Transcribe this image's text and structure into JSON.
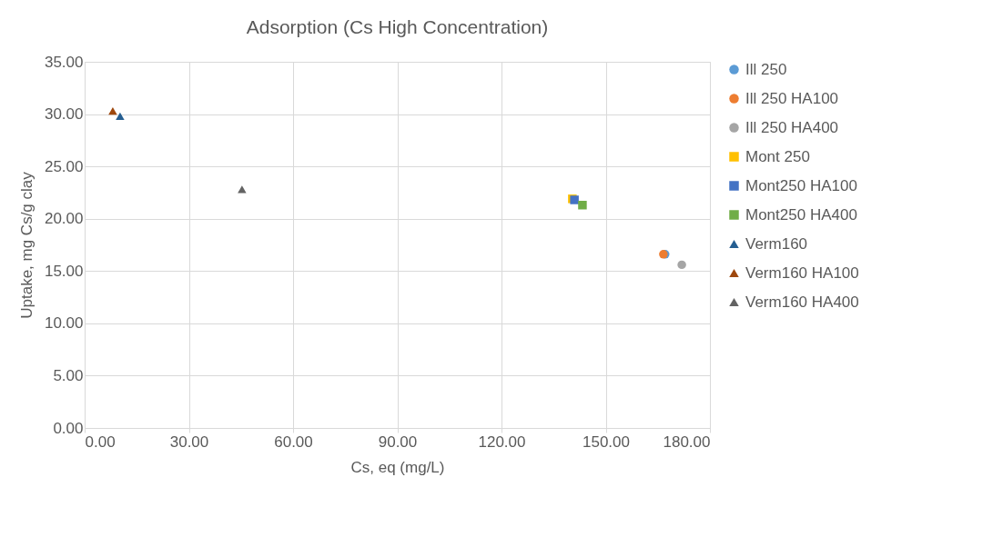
{
  "chart_data": {
    "type": "scatter",
    "title": "Adsorption (Cs High Concentration)",
    "xlabel": "Cs, eq (mg/L)",
    "ylabel": "Uptake, mg Cs/g clay",
    "xlim": [
      0,
      180
    ],
    "ylim": [
      0,
      35
    ],
    "xticks": [
      {
        "value": 0,
        "label": "0.00"
      },
      {
        "value": 30,
        "label": "30.00"
      },
      {
        "value": 60,
        "label": "60.00"
      },
      {
        "value": 90,
        "label": "90.00"
      },
      {
        "value": 120,
        "label": "120.00"
      },
      {
        "value": 150,
        "label": "150.00"
      },
      {
        "value": 180,
        "label": "180.00"
      }
    ],
    "yticks": [
      {
        "value": 0,
        "label": "0.00"
      },
      {
        "value": 5,
        "label": "5.00"
      },
      {
        "value": 10,
        "label": "10.00"
      },
      {
        "value": 15,
        "label": "15.00"
      },
      {
        "value": 20,
        "label": "20.00"
      },
      {
        "value": 25,
        "label": "25.00"
      },
      {
        "value": 30,
        "label": "30.00"
      },
      {
        "value": 35,
        "label": "35.00"
      }
    ],
    "grid": true,
    "legend": "right",
    "series": [
      {
        "name": "Ill 250",
        "color": "#5b9bd5",
        "marker": "circle",
        "x": [
          167.1
        ],
        "values": [
          16.6
        ]
      },
      {
        "name": "Ill 250 HA100",
        "color": "#ed7d31",
        "marker": "circle",
        "x": [
          166.6
        ],
        "values": [
          16.6
        ]
      },
      {
        "name": "Ill 250 HA400",
        "color": "#a5a5a5",
        "marker": "circle",
        "x": [
          171.9
        ],
        "values": [
          15.6
        ]
      },
      {
        "name": "Mont 250",
        "color": "#ffc000",
        "marker": "square",
        "x": [
          140.4
        ],
        "values": [
          21.9
        ]
      },
      {
        "name": "Mont250 HA100",
        "color": "#4472c4",
        "marker": "square",
        "x": [
          141.0
        ],
        "values": [
          21.8
        ]
      },
      {
        "name": "Mont250 HA400",
        "color": "#70ad47",
        "marker": "square",
        "x": [
          143.3
        ],
        "values": [
          21.3
        ]
      },
      {
        "name": "Verm160",
        "color": "#255e91",
        "marker": "triangle",
        "x": [
          10.2
        ],
        "values": [
          29.8
        ]
      },
      {
        "name": "Verm160 HA100",
        "color": "#9e480e",
        "marker": "triangle",
        "x": [
          8.1
        ],
        "values": [
          30.3
        ]
      },
      {
        "name": "Verm160 HA400",
        "color": "#636363",
        "marker": "triangle",
        "x": [
          45.3
        ],
        "values": [
          22.8
        ]
      }
    ]
  }
}
